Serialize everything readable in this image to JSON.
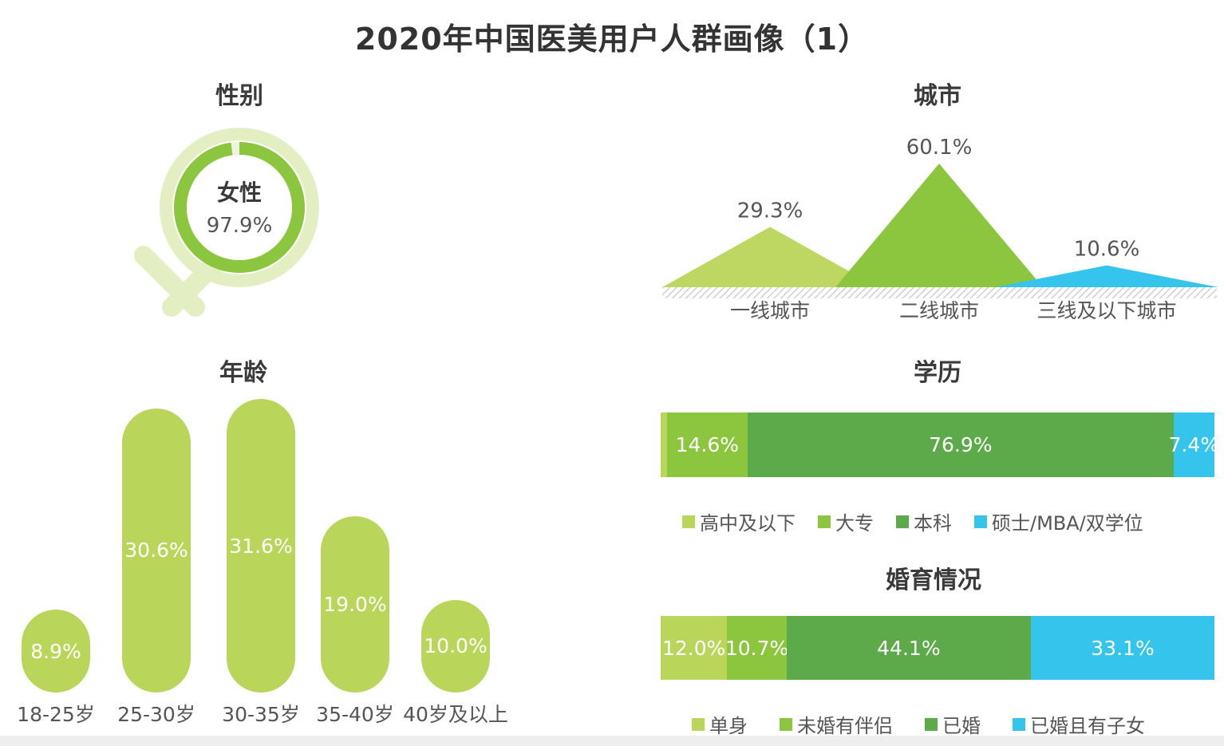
{
  "title": "2020年中国医美用户人群画像（1）",
  "colors": {
    "light_green": "#b9d55a",
    "mid_green": "#8cc63f",
    "dark_green": "#5daa4a",
    "blue": "#34c4ec",
    "ring_light": "#e3efc2"
  },
  "gender": {
    "title": "性别",
    "label": "女性",
    "value_text": "97.9%",
    "value": 97.9
  },
  "city": {
    "title": "城市",
    "chart_data": {
      "type": "area",
      "categories": [
        "一线城市",
        "二线城市",
        "三线及以下城市"
      ],
      "values": [
        29.3,
        60.1,
        10.6
      ],
      "labels": [
        "29.3%",
        "60.1%",
        "10.6%"
      ]
    }
  },
  "age": {
    "title": "年龄",
    "chart_data": {
      "type": "bar",
      "categories": [
        "18-25岁",
        "25-30岁",
        "30-35岁",
        "35-40岁",
        "40岁及以上"
      ],
      "values": [
        8.9,
        30.6,
        31.6,
        19.0,
        10.0
      ],
      "labels": [
        "8.9%",
        "30.6%",
        "31.6%",
        "19.0%",
        "10.0%"
      ]
    }
  },
  "education": {
    "title": "学历",
    "chart_data": {
      "type": "bar",
      "orientation": "stacked-horizontal",
      "categories": [
        "高中及以下",
        "大专",
        "本科",
        "硕士/MBA/双学位"
      ],
      "values": [
        1.1,
        14.6,
        76.9,
        7.4
      ],
      "labels": [
        "",
        "14.6%",
        "76.9%",
        "7.4%"
      ]
    },
    "legend": [
      "高中及以下",
      "大专",
      "本科",
      "硕士/MBA/双学位"
    ]
  },
  "marital": {
    "title": "婚育情况",
    "chart_data": {
      "type": "bar",
      "orientation": "stacked-horizontal",
      "categories": [
        "单身",
        "未婚有伴侣",
        "已婚",
        "已婚且有子女"
      ],
      "values": [
        12.0,
        10.7,
        44.1,
        33.1
      ],
      "labels": [
        "12.0%",
        "10.7%",
        "44.1%",
        "33.1%"
      ]
    },
    "legend": [
      "单身",
      "未婚有伴侣",
      "已婚",
      "已婚且有子女"
    ]
  }
}
